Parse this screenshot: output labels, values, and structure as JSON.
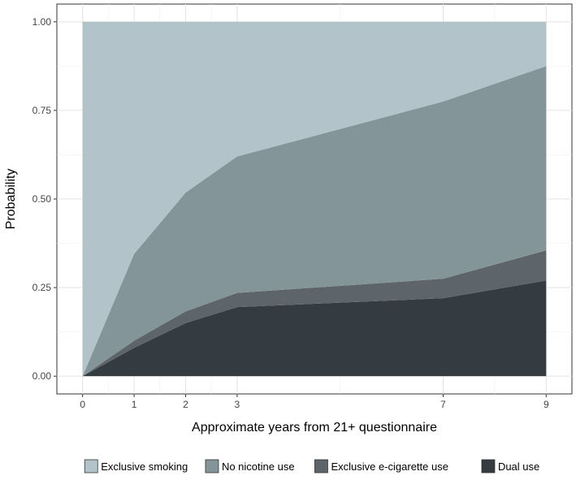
{
  "chart_data": {
    "type": "area",
    "stacked": true,
    "xlabel": "Approximate years from 21+ questionnaire",
    "ylabel": "Probability",
    "x": [
      0,
      1,
      2,
      3,
      7,
      9
    ],
    "x_ticks": [
      "0",
      "1",
      "2",
      "3",
      "7",
      "9"
    ],
    "xlim": [
      -0.5,
      9.5
    ],
    "y_ticks": [
      "0.00",
      "0.25",
      "0.50",
      "0.75",
      "1.00"
    ],
    "ylim": [
      -0.05,
      1.05
    ],
    "grid": true,
    "legend_position": "bottom",
    "series": [
      {
        "name": "Dual use",
        "values": [
          0.0,
          0.08,
          0.15,
          0.195,
          0.22,
          0.27
        ],
        "color": "#343c41"
      },
      {
        "name": "Exclusive e-cigarette use",
        "values": [
          0.0,
          0.02,
          0.033,
          0.04,
          0.055,
          0.085
        ],
        "color": "#5e656a"
      },
      {
        "name": "No nicotine use",
        "values": [
          0.0,
          0.245,
          0.335,
          0.385,
          0.5,
          0.52
        ],
        "color": "#84959a"
      },
      {
        "name": "Exclusive smoking",
        "values": [
          1.0,
          0.655,
          0.482,
          0.38,
          0.225,
          0.125
        ],
        "color": "#b3c3ca"
      }
    ],
    "legend_order": [
      "Exclusive smoking",
      "No nicotine use",
      "Exclusive e-cigarette use",
      "Dual use"
    ]
  }
}
